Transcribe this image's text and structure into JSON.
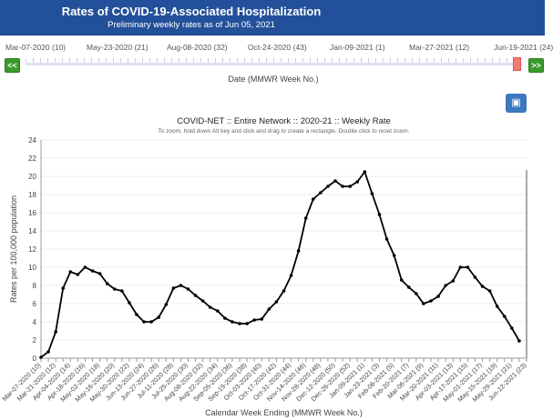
{
  "header": {
    "title": "Rates of COVID-19-Associated Hospitalization",
    "subtitle": "Preliminary weekly rates as of Jun 05, 2021"
  },
  "slider": {
    "labels": [
      "Mar-07-2020 (10)",
      "May-23-2020 (21)",
      "Aug-08-2020 (32)",
      "Oct-24-2020 (43)",
      "Jan-09-2021 (1)",
      "Mar-27-2021 (12)",
      "Jun-19-2021 (24)"
    ],
    "prev_label": "<<",
    "next_label": ">>",
    "axis_title": "Date (MMWR Week No.)",
    "position": 1.0
  },
  "image_button_icon": "image-icon",
  "chart_data": {
    "type": "line",
    "title": "COVID-NET :: Entire Network :: 2020-21 :: Weekly Rate",
    "subtitle": "To zoom, hold down Alt key and click and drag to create a rectangle. Double click to reset zoom.",
    "xlabel": "Calendar Week Ending (MMWR Week No.)",
    "ylabel": "Rates per 100,000 population",
    "ylim": [
      0,
      24
    ],
    "yticks": [
      0,
      2,
      4,
      6,
      8,
      10,
      12,
      14,
      16,
      18,
      20,
      22,
      24
    ],
    "category_count": 67,
    "xtick_labels": [
      "Mar-07-2020 (10)",
      "Mar-21-2020 (12)",
      "Apr-04-2020 (14)",
      "Apr-18-2020 (16)",
      "May-02-2020 (18)",
      "May-16-2020 (20)",
      "May-30-2020 (22)",
      "Jun-13-2020 (24)",
      "Jun-27-2020 (26)",
      "Jul-11-2020 (28)",
      "Jul-25-2020 (30)",
      "Aug-08-2020 (32)",
      "Aug-22-2020 (34)",
      "Sep-05-2020 (36)",
      "Sep-19-2020 (38)",
      "Oct-03-2020 (40)",
      "Oct-17-2020 (42)",
      "Oct-31-2020 (44)",
      "Nov-14-2020 (46)",
      "Nov-28-2020 (48)",
      "Dec-12-2020 (50)",
      "Dec-26-2020 (52)",
      "Jan-09-2021 (1)",
      "Jan-23-2021 (3)",
      "Feb-06-2021 (5)",
      "Feb-20-2021 (7)",
      "Mar-06-2021 (9)",
      "Mar-20-2021 (11)",
      "Apr-03-2021 (13)",
      "Apr-17-2021 (15)",
      "May-01-2021 (17)",
      "May-15-2021 (19)",
      "May-29-2021 (21)",
      "Jun-12-2021 (23)"
    ],
    "series": [
      {
        "name": "Weekly Rate",
        "color": "#000000",
        "values": [
          0.1,
          0.7,
          2.9,
          7.7,
          9.5,
          9.2,
          10.0,
          9.6,
          9.3,
          8.2,
          7.6,
          7.4,
          6.1,
          4.8,
          4.0,
          4.0,
          4.5,
          5.9,
          7.7,
          8.0,
          7.6,
          6.9,
          6.3,
          5.6,
          5.2,
          4.4,
          4.0,
          3.8,
          3.8,
          4.2,
          4.3,
          5.4,
          6.2,
          7.4,
          9.1,
          11.8,
          15.4,
          17.5,
          18.2,
          18.9,
          19.5,
          18.9,
          18.9,
          19.4,
          20.5,
          18.1,
          15.8,
          13.1,
          11.3,
          8.6,
          7.8,
          7.1,
          6.0,
          6.3,
          6.8,
          8.0,
          8.5,
          10.0,
          10.0,
          8.9,
          7.9,
          7.4,
          5.7,
          4.6,
          3.3,
          1.9
        ]
      }
    ],
    "grid": true,
    "legend": "none"
  }
}
